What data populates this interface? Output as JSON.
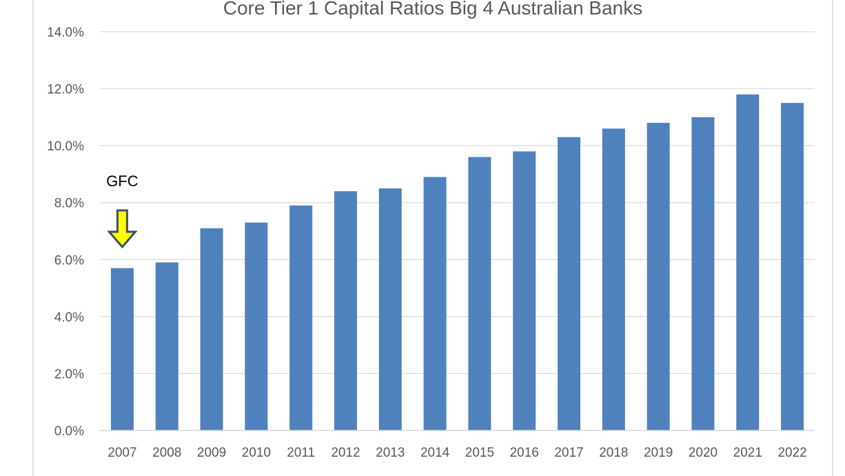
{
  "chart_data": {
    "type": "bar",
    "title": "Core Tier 1 Capital Ratios Big 4 Australian Banks",
    "xlabel": "",
    "ylabel": "",
    "categories": [
      "2007",
      "2008",
      "2009",
      "2010",
      "2011",
      "2012",
      "2013",
      "2014",
      "2015",
      "2016",
      "2017",
      "2018",
      "2019",
      "2020",
      "2021",
      "2022"
    ],
    "values": [
      5.7,
      5.9,
      7.1,
      7.3,
      7.9,
      8.4,
      8.5,
      8.9,
      9.6,
      9.8,
      10.3,
      10.6,
      10.8,
      11.0,
      11.8,
      11.5
    ],
    "value_format": "percent",
    "ylim": [
      0,
      14
    ],
    "yticks": [
      "0.0%",
      "2.0%",
      "4.0%",
      "6.0%",
      "8.0%",
      "10.0%",
      "12.0%",
      "14.0%"
    ],
    "grid": true,
    "legend": "none",
    "annotation": {
      "text": "GFC",
      "category": "2007",
      "arrow_color": "#ffff00",
      "arrow_outline": "#3d4f63"
    },
    "colors": {
      "bar": "#4f81bd",
      "grid": "#d9d9d9",
      "text": "#595959",
      "frame": "#d9d9d9"
    }
  }
}
